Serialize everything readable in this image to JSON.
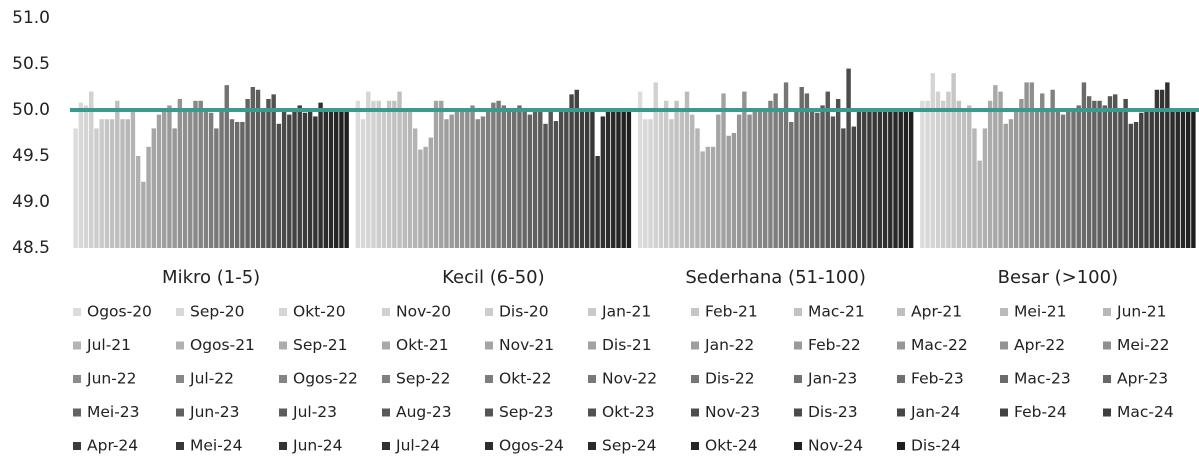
{
  "chart_data": {
    "type": "bar",
    "categories": [
      "Mikro (1-5)",
      "Kecil (6-50)",
      "Sederhana (51-100)",
      "Besar (>100)"
    ],
    "ylim": [
      48.5,
      51.0
    ],
    "yticks": [
      {
        "value": 48.5,
        "label": "48.5"
      },
      {
        "value": 49,
        "label": "49.0"
      },
      {
        "value": 49.5,
        "label": "49.5"
      },
      {
        "value": 50,
        "label": "50.0"
      },
      {
        "value": 50.5,
        "label": "50.5"
      },
      {
        "value": 51,
        "label": "51.0"
      }
    ],
    "grid": false,
    "reference_line": {
      "value": 50,
      "color": "#3a9a8c"
    },
    "series": [
      {
        "name": "Ogos-20",
        "color": "#dcdcdc",
        "values": [
          49.8,
          50.1,
          50.2,
          50.1
        ]
      },
      {
        "name": "Sep-20",
        "color": "#d8d8d8",
        "values": [
          50.08,
          49.9,
          49.9,
          50.1
        ]
      },
      {
        "name": "Okt-20",
        "color": "#d5d5d5",
        "values": [
          50.05,
          50.2,
          49.9,
          50.4
        ]
      },
      {
        "name": "Nov-20",
        "color": "#d1d1d1",
        "values": [
          50.2,
          50.1,
          50.3,
          50.2
        ]
      },
      {
        "name": "Dis-20",
        "color": "#cdcdcd",
        "values": [
          49.8,
          50.1,
          50.0,
          50.1
        ]
      },
      {
        "name": "Jan-21",
        "color": "#cacaca",
        "values": [
          49.9,
          50.0,
          50.1,
          50.2
        ]
      },
      {
        "name": "Feb-21",
        "color": "#c6c6c6",
        "values": [
          49.9,
          50.1,
          49.9,
          50.4
        ]
      },
      {
        "name": "Mac-21",
        "color": "#c2c2c2",
        "values": [
          49.9,
          50.1,
          50.1,
          50.1
        ]
      },
      {
        "name": "Apr-21",
        "color": "#bfbfbf",
        "values": [
          50.1,
          50.2,
          50.0,
          50.0
        ]
      },
      {
        "name": "Mei-21",
        "color": "#bbbbbb",
        "values": [
          49.9,
          50.0,
          50.2,
          50.05
        ]
      },
      {
        "name": "Jun-21",
        "color": "#b7b7b7",
        "values": [
          49.9,
          50.0,
          49.95,
          49.8
        ]
      },
      {
        "name": "Jul-21",
        "color": "#b4b4b4",
        "values": [
          50.0,
          49.8,
          49.8,
          49.45
        ]
      },
      {
        "name": "Ogos-21",
        "color": "#b0b0b0",
        "values": [
          49.5,
          49.57,
          49.55,
          49.8
        ]
      },
      {
        "name": "Sep-21",
        "color": "#acacac",
        "values": [
          49.22,
          49.6,
          49.6,
          50.1
        ]
      },
      {
        "name": "Okt-21",
        "color": "#a9a9a9",
        "values": [
          49.6,
          49.7,
          49.6,
          50.27
        ]
      },
      {
        "name": "Nov-21",
        "color": "#a5a5a5",
        "values": [
          49.8,
          50.1,
          49.95,
          50.2
        ]
      },
      {
        "name": "Dis-21",
        "color": "#a2a2a2",
        "values": [
          49.95,
          50.1,
          50.18,
          49.85
        ]
      },
      {
        "name": "Jan-22",
        "color": "#9e9e9e",
        "values": [
          50.0,
          49.9,
          49.72,
          49.9
        ]
      },
      {
        "name": "Feb-22",
        "color": "#9a9a9a",
        "values": [
          50.05,
          49.95,
          49.75,
          50.0
        ]
      },
      {
        "name": "Mac-22",
        "color": "#979797",
        "values": [
          49.8,
          50.0,
          49.95,
          50.12
        ]
      },
      {
        "name": "Apr-22",
        "color": "#939393",
        "values": [
          50.12,
          50.0,
          50.2,
          50.3
        ]
      },
      {
        "name": "Mei-22",
        "color": "#8f8f8f",
        "values": [
          50.0,
          50.0,
          49.95,
          50.3
        ]
      },
      {
        "name": "Jun-22",
        "color": "#8c8c8c",
        "values": [
          50.0,
          50.05,
          50.0,
          50.0
        ]
      },
      {
        "name": "Jul-22",
        "color": "#888888",
        "values": [
          50.1,
          49.9,
          50.0,
          50.18
        ]
      },
      {
        "name": "Ogos-22",
        "color": "#848484",
        "values": [
          50.1,
          49.93,
          50.0,
          50.0
        ]
      },
      {
        "name": "Sep-22",
        "color": "#818181",
        "values": [
          50.0,
          50.0,
          50.1,
          50.22
        ]
      },
      {
        "name": "Okt-22",
        "color": "#7d7d7d",
        "values": [
          49.97,
          50.08,
          50.18,
          50.0
        ]
      },
      {
        "name": "Nov-22",
        "color": "#797979",
        "values": [
          49.8,
          50.1,
          50.0,
          49.95
        ]
      },
      {
        "name": "Dis-22",
        "color": "#767676",
        "values": [
          50.0,
          50.05,
          50.3,
          50.0
        ]
      },
      {
        "name": "Jan-23",
        "color": "#727272",
        "values": [
          50.27,
          50.0,
          49.87,
          50.0
        ]
      },
      {
        "name": "Feb-23",
        "color": "#6e6e6e",
        "values": [
          49.9,
          50.0,
          50.0,
          50.05
        ]
      },
      {
        "name": "Mac-23",
        "color": "#6b6b6b",
        "values": [
          49.87,
          50.05,
          50.25,
          50.3
        ]
      },
      {
        "name": "Apr-23",
        "color": "#676767",
        "values": [
          49.87,
          50.0,
          50.18,
          50.15
        ]
      },
      {
        "name": "Mei-23",
        "color": "#636363",
        "values": [
          50.12,
          49.95,
          50.0,
          50.1
        ]
      },
      {
        "name": "Jun-23",
        "color": "#606060",
        "values": [
          50.25,
          50.0,
          49.97,
          50.1
        ]
      },
      {
        "name": "Jul-23",
        "color": "#5c5c5c",
        "values": [
          50.22,
          50.0,
          50.05,
          50.05
        ]
      },
      {
        "name": "Aug-23",
        "color": "#585858",
        "values": [
          50.0,
          49.85,
          50.2,
          50.15
        ]
      },
      {
        "name": "Sep-23",
        "color": "#555555",
        "values": [
          50.12,
          50.0,
          49.93,
          50.17
        ]
      },
      {
        "name": "Okt-23",
        "color": "#515151",
        "values": [
          50.17,
          49.88,
          50.12,
          50.0
        ]
      },
      {
        "name": "Nov-23",
        "color": "#4d4d4d",
        "values": [
          49.85,
          50.0,
          49.8,
          50.12
        ]
      },
      {
        "name": "Dis-23",
        "color": "#4a4a4a",
        "values": [
          50.0,
          50.0,
          50.45,
          49.85
        ]
      },
      {
        "name": "Jan-24",
        "color": "#464646",
        "values": [
          49.95,
          50.17,
          49.82,
          49.87
        ]
      },
      {
        "name": "Feb-24",
        "color": "#424242",
        "values": [
          50.0,
          50.22,
          50.0,
          49.97
        ]
      },
      {
        "name": "Mac-24",
        "color": "#3f3f3f",
        "values": [
          50.05,
          50.0,
          50.0,
          50.0
        ]
      },
      {
        "name": "Apr-24",
        "color": "#3b3b3b",
        "values": [
          49.97,
          50.0,
          50.0,
          50.0
        ]
      },
      {
        "name": "Mei-24",
        "color": "#373737",
        "values": [
          50.0,
          50.0,
          50.0,
          50.22
        ]
      },
      {
        "name": "Jun-24",
        "color": "#343434",
        "values": [
          49.93,
          49.5,
          50.0,
          50.22
        ]
      },
      {
        "name": "Jul-24",
        "color": "#303030",
        "values": [
          50.08,
          49.93,
          50.0,
          50.3
        ]
      },
      {
        "name": "Ogos-24",
        "color": "#2c2c2c",
        "values": [
          50.0,
          50.0,
          50.0,
          50.0
        ]
      },
      {
        "name": "Sep-24",
        "color": "#292929",
        "values": [
          50.0,
          50.0,
          50.0,
          50.0
        ]
      },
      {
        "name": "Okt-24",
        "color": "#252525",
        "values": [
          50.0,
          50.0,
          50.0,
          50.0
        ]
      },
      {
        "name": "Nov-24",
        "color": "#212121",
        "values": [
          50.0,
          50.0,
          50.0,
          50.0
        ]
      },
      {
        "name": "Dis-24",
        "color": "#1e1e1e",
        "values": [
          50.0,
          50.0,
          50.0,
          50.0
        ]
      }
    ]
  }
}
